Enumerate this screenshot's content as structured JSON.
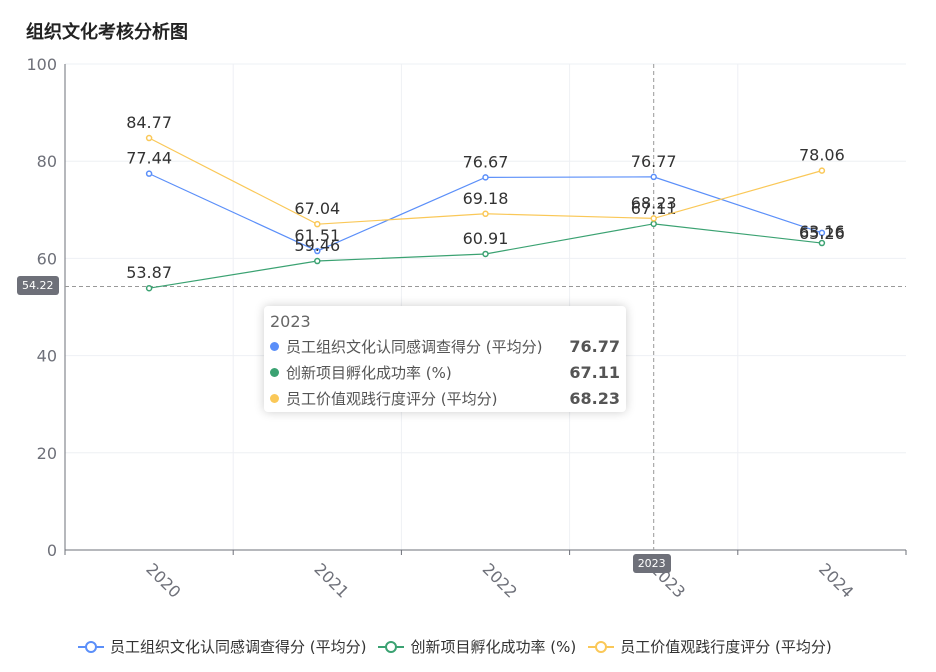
{
  "title": "组织文化考核分析图",
  "chart_data": {
    "type": "line",
    "categories": [
      "2020",
      "2021",
      "2022",
      "2023",
      "2024"
    ],
    "ylim": [
      0,
      100
    ],
    "yticks": [
      0,
      20,
      40,
      60,
      80,
      100
    ],
    "grid": true,
    "legend_position": "bottom",
    "series": [
      {
        "name": "员工组织文化认同感调查得分 (平均分)",
        "color": "#5b8ff9",
        "values": [
          77.44,
          61.51,
          76.67,
          76.77,
          65.26
        ],
        "labels": [
          "77.44",
          "61.51",
          "76.67",
          "76.77",
          "65.26"
        ]
      },
      {
        "name": "创新项目孵化成功率 (%)",
        "color": "#3ba272",
        "values": [
          53.87,
          59.46,
          60.91,
          67.11,
          63.16
        ],
        "labels": [
          "53.87",
          "59.46",
          "60.91",
          "67.11",
          "63.16"
        ]
      },
      {
        "name": "员工价值观践行度评分 (平均分)",
        "color": "#fac858",
        "values": [
          84.77,
          67.04,
          69.18,
          68.23,
          78.06
        ],
        "labels": [
          "84.77",
          "67.04",
          "69.18",
          "68.23",
          "78.06"
        ]
      }
    ]
  },
  "crosshair": {
    "y_value": 54.22,
    "y_label": "54.22",
    "x_category": "2023",
    "x_label": "2023"
  },
  "tooltip": {
    "title": "2023",
    "rows": [
      {
        "name": "员工组织文化认同感调查得分 (平均分)",
        "value": "76.77",
        "color": "#5b8ff9"
      },
      {
        "name": "创新项目孵化成功率 (%)",
        "value": "67.11",
        "color": "#3ba272"
      },
      {
        "name": "员工价值观践行度评分 (平均分)",
        "value": "68.23",
        "color": "#fac858"
      }
    ]
  },
  "legend": [
    {
      "label": "员工组织文化认同感调查得分 (平均分)",
      "color": "#5b8ff9"
    },
    {
      "label": "创新项目孵化成功率 (%)",
      "color": "#3ba272"
    },
    {
      "label": "员工价值观践行度评分 (平均分)",
      "color": "#fac858"
    }
  ]
}
